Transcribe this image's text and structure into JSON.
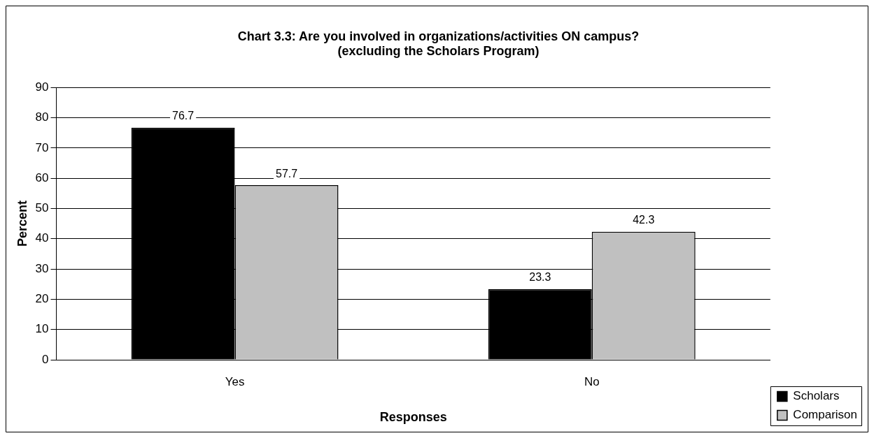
{
  "chart_data": {
    "type": "bar",
    "title": "Chart 3.3: Are you involved in organizations/activities ON campus?\n(excluding the Scholars Program)",
    "xlabel": "Responses",
    "ylabel": "Percent",
    "categories": [
      "Yes",
      "No"
    ],
    "series": [
      {
        "name": "Scholars",
        "color": "#000000",
        "values": [
          76.7,
          23.3
        ]
      },
      {
        "name": "Comparison",
        "color": "#c0c0c0",
        "values": [
          57.7,
          42.3
        ]
      }
    ],
    "ylim": [
      0,
      90
    ],
    "yticks": [
      0,
      10,
      20,
      30,
      40,
      50,
      60,
      70,
      80,
      90
    ],
    "grid": "y",
    "legend": "bottom right",
    "data_labels": true
  }
}
